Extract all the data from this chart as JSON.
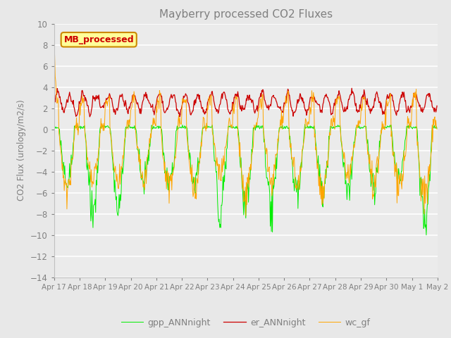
{
  "title": "Mayberry processed CO2 Fluxes",
  "ylabel": "CO2 Flux (urology/m2/s)",
  "ylim": [
    -14,
    10
  ],
  "yticks": [
    -14,
    -12,
    -10,
    -8,
    -6,
    -4,
    -2,
    0,
    2,
    4,
    6,
    8,
    10
  ],
  "x_tick_labels": [
    "Apr 17",
    "Apr 18",
    "Apr 19",
    "Apr 20",
    "Apr 21",
    "Apr 22",
    "Apr 23",
    "Apr 24",
    "Apr 25",
    "Apr 26",
    "Apr 27",
    "Apr 28",
    "Apr 29",
    "Apr 30",
    "May 1",
    "May 2"
  ],
  "colors": {
    "gpp": "#00EE00",
    "er": "#CC0000",
    "wc": "#FFA500"
  },
  "legend_labels": [
    "gpp_ANNnight",
    "er_ANNnight",
    "wc_gf"
  ],
  "inset_label": "MB_processed",
  "inset_text_color": "#CC0000",
  "inset_border_color": "#CC8800",
  "inset_face_color": "#FFFF99",
  "background_color": "#E8E8E8",
  "plot_bg_color": "#EBEBEB",
  "grid_color": "#FFFFFF",
  "title_color": "#808080",
  "axis_label_color": "#808080",
  "tick_color": "#808080",
  "figsize": [
    6.4,
    4.8
  ],
  "dpi": 100
}
